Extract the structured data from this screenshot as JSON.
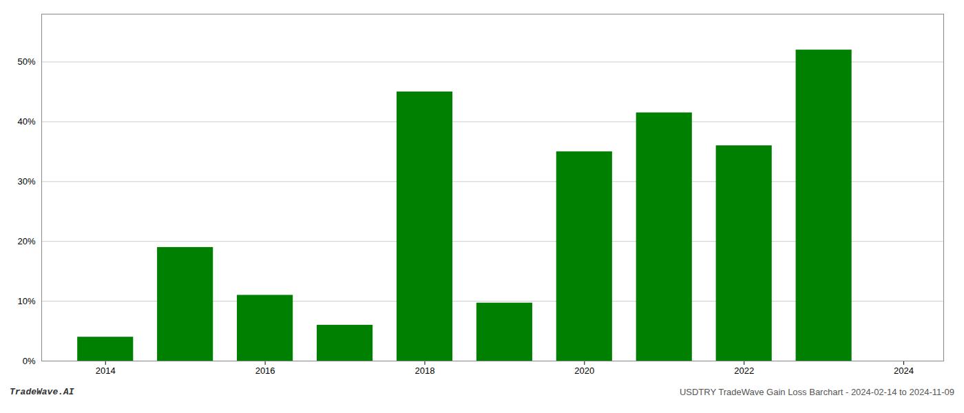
{
  "chart_data": {
    "type": "bar",
    "x": [
      2014,
      2015,
      2016,
      2017,
      2018,
      2019,
      2020,
      2021,
      2022,
      2023
    ],
    "values": [
      0.04,
      0.19,
      0.11,
      0.06,
      0.45,
      0.097,
      0.35,
      0.415,
      0.36,
      0.52
    ],
    "color": "#008000",
    "xlim": [
      2013.2,
      2024.5
    ],
    "xticks": [
      2014,
      2016,
      2018,
      2020,
      2022,
      2024
    ],
    "ylim": [
      0,
      0.58
    ],
    "yticks": [
      {
        "value": 0.0,
        "label": "0%"
      },
      {
        "value": 0.1,
        "label": "10%"
      },
      {
        "value": 0.2,
        "label": "20%"
      },
      {
        "value": 0.3,
        "label": "30%"
      },
      {
        "value": 0.4,
        "label": "40%"
      },
      {
        "value": 0.5,
        "label": "50%"
      }
    ],
    "grid": "y",
    "annotations": [
      "TradeWave.AI",
      "USDTRY TradeWave Gain Loss Barchart - 2024-02-14 to 2024-11-09"
    ]
  }
}
